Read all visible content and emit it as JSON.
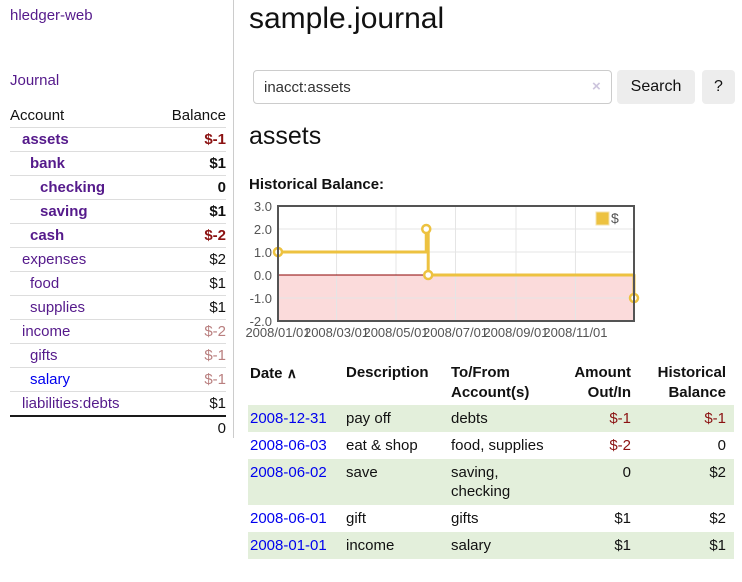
{
  "colors": {
    "purple": "#551a8b",
    "blue": "#0000ee",
    "neg-strong": "#8b1212",
    "neg-soft": "#b97f7f",
    "stripe-green": "#e3efdb",
    "divider": "#dddddd",
    "input-border": "#cccccc",
    "button-bg": "#ededed",
    "chart-line": "#edc240",
    "chart-negative-fill": "#fbdbdb",
    "chart-zero-line": "#8b0000",
    "chart-grid": "#e5e5e5",
    "chart-border": "#545454"
  },
  "sidebar": {
    "app_title": "hledger-web",
    "journal_label": "Journal",
    "accounts_table": {
      "headers": {
        "account": "Account",
        "balance": "Balance"
      },
      "rows": [
        {
          "name": "assets",
          "level": 1,
          "bold": true,
          "balance": "$-1",
          "neg": "strong"
        },
        {
          "name": "bank",
          "level": 2,
          "bold": true,
          "balance": "$1"
        },
        {
          "name": "checking",
          "level": 3,
          "bold": true,
          "balance": "0"
        },
        {
          "name": "saving",
          "level": 3,
          "bold": true,
          "balance": "$1"
        },
        {
          "name": "cash",
          "level": 2,
          "bold": true,
          "balance": "$-2",
          "neg": "strong"
        },
        {
          "name": "expenses",
          "level": 1,
          "bold": false,
          "balance": "$2"
        },
        {
          "name": "food",
          "level": 2,
          "bold": false,
          "balance": "$1"
        },
        {
          "name": "supplies",
          "level": 2,
          "bold": false,
          "balance": "$1"
        },
        {
          "name": "income",
          "level": 1,
          "bold": false,
          "balance": "$-2",
          "neg": "soft"
        },
        {
          "name": "gifts",
          "level": 2,
          "bold": false,
          "balance": "$-1",
          "neg": "soft"
        },
        {
          "name": "salary",
          "level": 2,
          "bold": false,
          "balance": "$-1",
          "neg": "soft",
          "link": "blue"
        },
        {
          "name": "liabilities:debts",
          "level": 1,
          "bold": false,
          "balance": "$1"
        }
      ],
      "total": "0"
    }
  },
  "main": {
    "title": "sample.journal",
    "search": {
      "value": "inacct:assets",
      "clear_icon": "×",
      "search_label": "Search",
      "help_label": "?"
    },
    "account_heading": "assets",
    "chart_label": "Historical Balance:",
    "register": {
      "headers": {
        "date": "Date",
        "sort_icon": "∧",
        "description": "Description",
        "accounts": "To/From Account(s)",
        "amount": "Amount Out/In",
        "balance": "Historical Balance"
      },
      "rows": [
        {
          "date": "2008-12-31",
          "description": "pay off",
          "accounts": "debts",
          "amount": "$-1",
          "amount_neg": true,
          "balance": "$-1",
          "balance_neg": true
        },
        {
          "date": "2008-06-03",
          "description": "eat & shop",
          "accounts": "food, supplies",
          "amount": "$-2",
          "amount_neg": true,
          "balance": "0"
        },
        {
          "date": "2008-06-02",
          "description": "save",
          "accounts": "saving, checking",
          "amount": "0",
          "balance": "$2"
        },
        {
          "date": "2008-06-01",
          "description": "gift",
          "accounts": "gifts",
          "amount": "$1",
          "balance": "$2"
        },
        {
          "date": "2008-01-01",
          "description": "income",
          "accounts": "salary",
          "amount": "$1",
          "balance": "$1"
        }
      ]
    }
  },
  "chart_data": {
    "type": "line",
    "step": true,
    "title": "Historical Balance:",
    "x_domain_days": 365,
    "ylim": [
      -2,
      3
    ],
    "y_ticks": [
      3.0,
      2.0,
      1.0,
      0.0,
      -1.0,
      -2.0
    ],
    "x_ticks": [
      {
        "label": "2008/01/01",
        "day": 0
      },
      {
        "label": "2008/03/01",
        "day": 60
      },
      {
        "label": "2008/05/01",
        "day": 121
      },
      {
        "label": "2008/07/01",
        "day": 182
      },
      {
        "label": "2008/09/01",
        "day": 244
      },
      {
        "label": "2008/11/01",
        "day": 305
      }
    ],
    "series": [
      {
        "name": "$",
        "color": "#edc240",
        "points": [
          {
            "date": "2008-01-01",
            "day": 0,
            "value": 1
          },
          {
            "date": "2008-06-01",
            "day": 152,
            "value": 2
          },
          {
            "date": "2008-06-03",
            "day": 154,
            "value": 0
          },
          {
            "date": "2008-12-31",
            "day": 365,
            "value": -1
          }
        ]
      }
    ],
    "legend": {
      "label": "$",
      "position": "top-right"
    },
    "grid": true,
    "negative_region_fill": "#fbdbdb",
    "zero_line_color": "#8b0000"
  }
}
